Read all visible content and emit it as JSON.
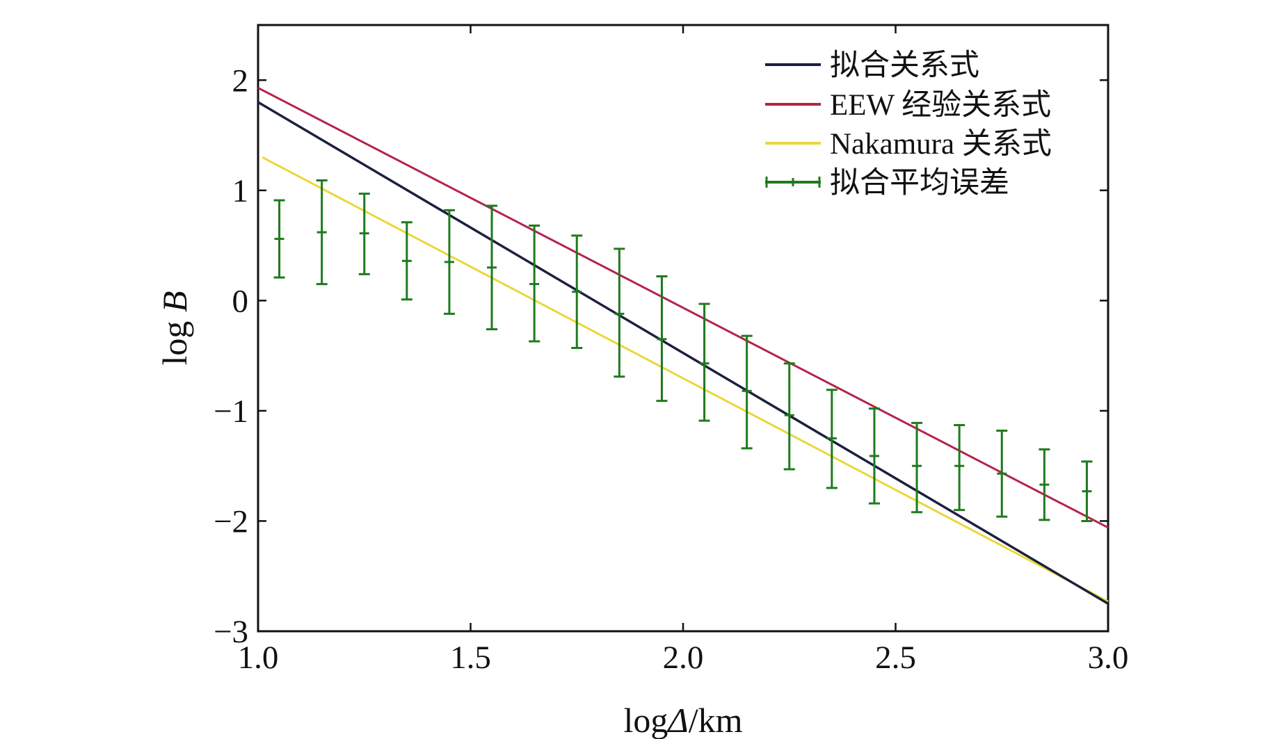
{
  "chart_data": {
    "type": "line",
    "title": "",
    "xlabel_prefix": "log",
    "xlabel_symbol": "Δ",
    "xlabel_suffix": "/km",
    "ylabel_prefix": "log ",
    "ylabel_symbol": "B",
    "xlim": [
      1.0,
      3.0
    ],
    "ylim": [
      -3.0,
      2.5
    ],
    "xticks": [
      1.0,
      1.5,
      2.0,
      2.5,
      3.0
    ],
    "xtick_labels": [
      "1.0",
      "1.5",
      "2.0",
      "2.5",
      "3.0"
    ],
    "yticks": [
      2,
      1,
      0,
      -1,
      -2,
      -3
    ],
    "ytick_labels": [
      "2",
      "1",
      "0",
      "−1",
      "−2",
      "−3"
    ],
    "grid": false,
    "legend_position": "top-right",
    "series": [
      {
        "name": "拟合关系式",
        "kind": "line",
        "color": "#1b2040",
        "x": [
          1.0,
          3.0
        ],
        "y": [
          1.8,
          -2.75
        ]
      },
      {
        "name": "EEW 经验关系式",
        "kind": "line",
        "color": "#b3244a",
        "x": [
          1.0,
          3.0
        ],
        "y": [
          1.93,
          -2.06
        ]
      },
      {
        "name": "Nakamura 关系式",
        "kind": "line",
        "color": "#ead73a",
        "x": [
          1.01,
          3.0
        ],
        "y": [
          1.3,
          -2.73
        ]
      },
      {
        "name": "拟合平均误差",
        "kind": "errorbar",
        "color": "#1e7a1e",
        "x": [
          1.05,
          1.15,
          1.25,
          1.35,
          1.45,
          1.55,
          1.65,
          1.75,
          1.85,
          1.95,
          2.05,
          2.15,
          2.25,
          2.35,
          2.45,
          2.55,
          2.65,
          2.75,
          2.85,
          2.95
        ],
        "y": [
          0.56,
          0.62,
          0.61,
          0.36,
          0.35,
          0.3,
          0.15,
          0.08,
          -0.12,
          -0.35,
          -0.57,
          -0.82,
          -1.04,
          -1.25,
          -1.41,
          -1.5,
          -1.5,
          -1.57,
          -1.67,
          -1.73
        ],
        "err_low": [
          0.21,
          0.15,
          0.24,
          0.01,
          -0.12,
          -0.26,
          -0.37,
          -0.43,
          -0.69,
          -0.91,
          -1.09,
          -1.34,
          -1.53,
          -1.7,
          -1.84,
          -1.92,
          -1.9,
          -1.96,
          -1.99,
          -2.0
        ],
        "err_high": [
          0.91,
          1.09,
          0.97,
          0.71,
          0.82,
          0.86,
          0.68,
          0.59,
          0.47,
          0.22,
          -0.03,
          -0.32,
          -0.57,
          -0.81,
          -0.98,
          -1.11,
          -1.13,
          -1.18,
          -1.35,
          -1.46
        ]
      }
    ]
  }
}
